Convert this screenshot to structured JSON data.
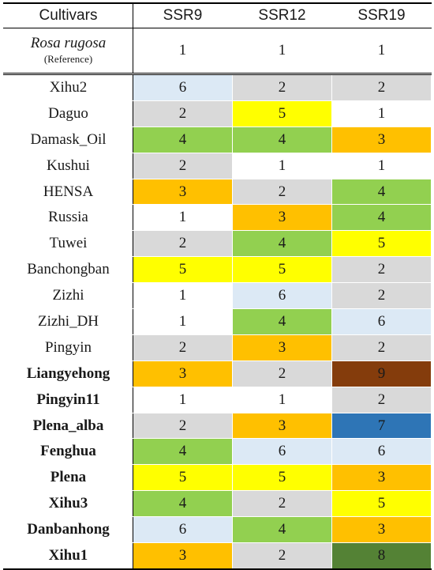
{
  "headers": [
    "Cultivars",
    "SSR9",
    "SSR12",
    "SSR19"
  ],
  "reference": {
    "name": "Rosa rugosa",
    "note": "(Reference)",
    "values": [
      "1",
      "1",
      "1"
    ]
  },
  "colors": {
    "1": "#ffffff",
    "2": "#d9d9d9",
    "3": "#ffc000",
    "4": "#92d050",
    "5": "#ffff00",
    "6": "#dce9f5",
    "7": "#2e75b6",
    "8": "#548235",
    "9": "#843c0c"
  },
  "rows": [
    {
      "name": "Xihu2",
      "bold": false,
      "values": [
        "6",
        "2",
        "2"
      ]
    },
    {
      "name": "Daguo",
      "bold": false,
      "values": [
        "2",
        "5",
        "1"
      ]
    },
    {
      "name": "Damask_Oil",
      "bold": false,
      "values": [
        "4",
        "4",
        "3"
      ]
    },
    {
      "name": "Kushui",
      "bold": false,
      "values": [
        "2",
        "1",
        "1"
      ]
    },
    {
      "name": "HENSA",
      "bold": false,
      "values": [
        "3",
        "2",
        "4"
      ]
    },
    {
      "name": "Russia",
      "bold": false,
      "values": [
        "1",
        "3",
        "4"
      ]
    },
    {
      "name": "Tuwei",
      "bold": false,
      "values": [
        "2",
        "4",
        "5"
      ]
    },
    {
      "name": "Banchongban",
      "bold": false,
      "values": [
        "5",
        "5",
        "2"
      ]
    },
    {
      "name": "Zizhi",
      "bold": false,
      "values": [
        "1",
        "6",
        "2"
      ]
    },
    {
      "name": "Zizhi_DH",
      "bold": false,
      "values": [
        "1",
        "4",
        "6"
      ]
    },
    {
      "name": "Pingyin",
      "bold": false,
      "values": [
        "2",
        "3",
        "2"
      ]
    },
    {
      "name": "Liangyehong",
      "bold": true,
      "values": [
        "3",
        "2",
        "9"
      ]
    },
    {
      "name": "Pingyin11",
      "bold": true,
      "values": [
        "1",
        "1",
        "2"
      ]
    },
    {
      "name": "Plena_alba",
      "bold": true,
      "values": [
        "2",
        "3",
        "7"
      ]
    },
    {
      "name": "Fenghua",
      "bold": true,
      "values": [
        "4",
        "6",
        "6"
      ]
    },
    {
      "name": "Plena",
      "bold": true,
      "values": [
        "5",
        "5",
        "3"
      ]
    },
    {
      "name": "Xihu3",
      "bold": true,
      "values": [
        "4",
        "2",
        "5"
      ]
    },
    {
      "name": "Danbanhong",
      "bold": true,
      "values": [
        "6",
        "4",
        "3"
      ]
    },
    {
      "name": "Xihu1",
      "bold": true,
      "values": [
        "3",
        "2",
        "8"
      ]
    }
  ]
}
